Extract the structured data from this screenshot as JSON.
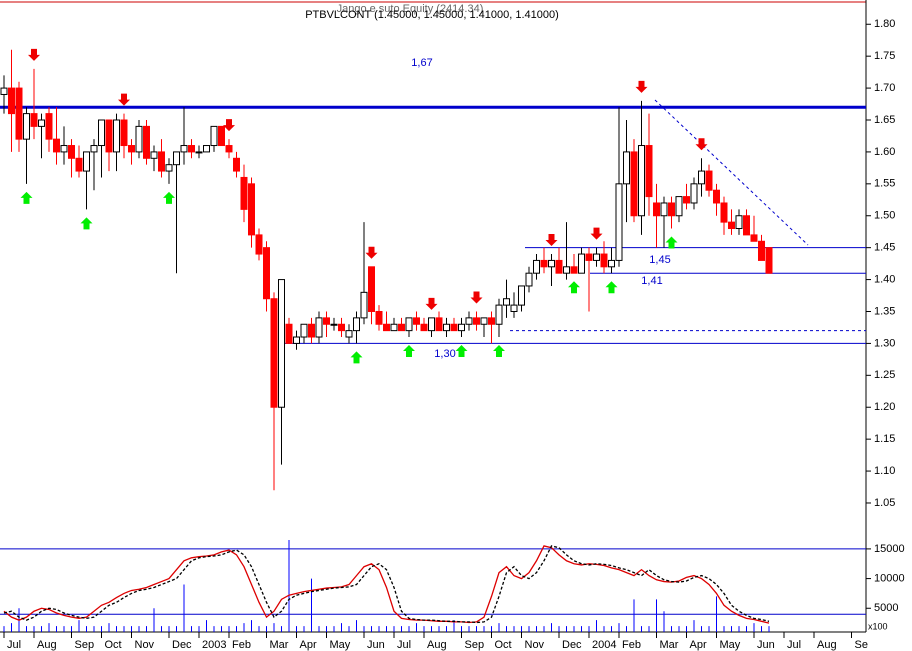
{
  "chart_data": [
    {
      "type": "candlestick",
      "title": "PTBVLCONT (1.45000, 1.45000, 1.41000, 1.41000)",
      "subtitle": "Jango e suto Equity (2414.34)",
      "categories": [
        "Jul",
        null,
        null,
        null,
        "Aug",
        null,
        null,
        null,
        null,
        "Sep",
        null,
        null,
        null,
        "Oct",
        null,
        null,
        null,
        "Nov",
        null,
        null,
        null,
        null,
        "Dec",
        null,
        null,
        null,
        "2003",
        null,
        null,
        null,
        "Feb",
        null,
        null,
        null,
        null,
        "Mar",
        null,
        null,
        null,
        "Apr",
        null,
        null,
        null,
        "May",
        null,
        null,
        null,
        null,
        "Jun",
        null,
        null,
        null,
        "Jul",
        null,
        null,
        null,
        "Aug",
        null,
        null,
        null,
        null,
        "Sep",
        null,
        null,
        null,
        "Oct",
        null,
        null,
        null,
        "Nov",
        null,
        null,
        null,
        null,
        "Dec",
        null,
        null,
        null,
        "2004",
        null,
        null,
        null,
        "Feb",
        null,
        null,
        null,
        null,
        "Mar",
        null,
        null,
        null,
        "Apr",
        null,
        null,
        null,
        "May",
        null,
        null,
        null,
        null,
        "Jun",
        null,
        null,
        null,
        "Jul",
        null,
        null,
        null,
        "Aug",
        null,
        null,
        null,
        null,
        "Se",
        null,
        null
      ],
      "open": [
        1.69,
        1.7,
        1.7,
        1.62,
        1.66,
        1.64,
        1.66,
        1.62,
        1.6,
        1.61,
        1.59,
        1.57,
        1.6,
        1.61,
        1.65,
        1.6,
        1.65,
        1.61,
        1.6,
        1.64,
        1.59,
        1.6,
        1.57,
        1.58,
        1.6,
        1.61,
        1.6,
        1.6,
        1.61,
        1.64,
        1.61,
        1.59,
        1.56,
        1.55,
        1.47,
        1.45,
        1.37,
        1.2,
        1.33,
        1.3,
        1.31,
        1.33,
        1.31,
        1.34,
        1.33,
        1.33,
        1.31,
        1.32,
        1.34,
        1.42,
        1.35,
        1.33,
        1.32,
        1.33,
        1.32,
        1.34,
        1.33,
        1.32,
        1.34,
        1.32,
        1.33,
        1.32,
        1.33,
        1.34,
        1.33,
        1.34,
        1.33,
        1.36,
        1.35,
        1.36,
        1.39,
        1.41,
        1.43,
        1.42,
        1.43,
        1.41,
        1.42,
        1.41,
        1.44,
        1.43,
        1.44,
        1.42,
        1.43,
        1.55,
        1.6,
        1.5,
        1.61,
        1.52,
        1.5,
        1.52,
        1.5,
        1.53,
        1.52,
        1.55,
        1.57,
        1.54,
        1.52,
        1.49,
        1.48,
        1.5,
        1.47,
        1.46,
        1.45,
        null,
        null,
        null,
        null,
        null,
        null,
        null,
        null,
        null,
        null,
        null,
        null,
        null
      ],
      "high": [
        1.72,
        1.76,
        1.71,
        1.67,
        1.73,
        1.66,
        1.67,
        1.67,
        1.64,
        1.62,
        1.61,
        1.6,
        1.62,
        1.65,
        1.65,
        1.66,
        1.66,
        1.62,
        1.65,
        1.65,
        1.61,
        1.62,
        1.59,
        1.6,
        1.67,
        1.62,
        1.61,
        1.61,
        1.64,
        1.64,
        1.62,
        1.6,
        1.58,
        1.56,
        1.48,
        1.46,
        1.38,
        1.4,
        1.34,
        1.32,
        1.33,
        1.34,
        1.35,
        1.35,
        1.34,
        1.34,
        1.33,
        1.35,
        1.49,
        1.42,
        1.36,
        1.35,
        1.34,
        1.34,
        1.34,
        1.35,
        1.34,
        1.34,
        1.35,
        1.34,
        1.34,
        1.34,
        1.35,
        1.35,
        1.34,
        1.35,
        1.37,
        1.4,
        1.38,
        1.39,
        1.42,
        1.44,
        1.45,
        1.44,
        1.45,
        1.49,
        1.44,
        1.45,
        1.45,
        1.45,
        1.46,
        1.45,
        1.67,
        1.65,
        1.62,
        1.68,
        1.66,
        1.55,
        1.53,
        1.53,
        1.53,
        1.55,
        1.56,
        1.59,
        1.58,
        1.55,
        1.53,
        1.51,
        1.51,
        1.51,
        1.5,
        1.47,
        1.45,
        null,
        null,
        null,
        null,
        null,
        null,
        null,
        null,
        null,
        null,
        null,
        null,
        null
      ],
      "low": [
        1.66,
        1.6,
        1.6,
        1.55,
        1.62,
        1.59,
        1.6,
        1.58,
        1.58,
        1.56,
        1.56,
        1.51,
        1.54,
        1.56,
        1.57,
        1.57,
        1.59,
        1.58,
        1.59,
        1.58,
        1.57,
        1.56,
        1.55,
        1.41,
        1.58,
        1.59,
        1.59,
        1.6,
        1.6,
        1.61,
        1.59,
        1.56,
        1.49,
        1.45,
        1.43,
        1.35,
        1.07,
        1.11,
        1.3,
        1.29,
        1.3,
        1.3,
        1.3,
        1.31,
        1.32,
        1.31,
        1.3,
        1.3,
        1.33,
        1.33,
        1.32,
        1.32,
        1.32,
        1.32,
        1.31,
        1.32,
        1.32,
        1.31,
        1.32,
        1.31,
        1.32,
        1.31,
        1.32,
        1.32,
        1.31,
        1.3,
        1.31,
        1.34,
        1.34,
        1.35,
        1.38,
        1.4,
        1.41,
        1.39,
        1.41,
        1.4,
        1.41,
        1.41,
        1.35,
        1.42,
        1.41,
        1.41,
        1.42,
        1.49,
        1.49,
        1.47,
        1.5,
        1.45,
        1.45,
        1.48,
        1.49,
        1.51,
        1.51,
        1.53,
        1.53,
        1.5,
        1.47,
        1.47,
        1.47,
        1.47,
        1.46,
        1.43,
        1.41,
        null,
        null,
        null,
        null,
        null,
        null,
        null,
        null,
        null,
        null,
        null,
        null,
        null
      ],
      "close": [
        1.7,
        1.66,
        1.62,
        1.66,
        1.64,
        1.65,
        1.62,
        1.6,
        1.61,
        1.59,
        1.57,
        1.6,
        1.61,
        1.65,
        1.6,
        1.65,
        1.61,
        1.6,
        1.64,
        1.59,
        1.6,
        1.57,
        1.58,
        1.6,
        1.61,
        1.6,
        1.6,
        1.61,
        1.64,
        1.61,
        1.6,
        1.57,
        1.51,
        1.47,
        1.44,
        1.37,
        1.2,
        1.4,
        1.3,
        1.31,
        1.33,
        1.31,
        1.34,
        1.33,
        1.33,
        1.32,
        1.32,
        1.34,
        1.38,
        1.35,
        1.33,
        1.32,
        1.33,
        1.32,
        1.34,
        1.33,
        1.32,
        1.34,
        1.32,
        1.33,
        1.32,
        1.33,
        1.34,
        1.33,
        1.34,
        1.33,
        1.36,
        1.37,
        1.36,
        1.39,
        1.41,
        1.43,
        1.42,
        1.43,
        1.41,
        1.42,
        1.41,
        1.44,
        1.43,
        1.44,
        1.42,
        1.43,
        1.55,
        1.6,
        1.5,
        1.61,
        1.53,
        1.5,
        1.52,
        1.5,
        1.53,
        1.52,
        1.55,
        1.57,
        1.54,
        1.52,
        1.49,
        1.48,
        1.5,
        1.47,
        1.46,
        1.43,
        1.41,
        null,
        null,
        null,
        null,
        null,
        null,
        null,
        null,
        null,
        null,
        null,
        null,
        null
      ],
      "up_color": "#ffffff",
      "down_color": "#ff0000",
      "ylim": [
        0.992,
        1.838
      ],
      "yticks": [
        1.05,
        {
          "value": 1.1,
          "label": "1.10"
        },
        1.15,
        {
          "value": 1.2,
          "label": "1.20"
        },
        1.25,
        {
          "value": 1.3,
          "label": "1.30"
        },
        1.35,
        {
          "value": 1.4,
          "label": "1.40"
        },
        1.45,
        {
          "value": 1.5,
          "label": "1.50"
        },
        1.55,
        {
          "value": 1.6,
          "label": "1.60"
        },
        1.65,
        {
          "value": 1.7,
          "label": "1.70"
        },
        1.75,
        {
          "value": 1.8,
          "label": "1.80"
        }
      ],
      "reference_lines": [
        {
          "value": 1.67,
          "label": "1,67"
        },
        {
          "value": 1.45,
          "label": "1,45"
        },
        {
          "value": 1.41,
          "label": "1,41"
        },
        {
          "value": 1.3,
          "label": "1,30"
        },
        {
          "value": 1.32,
          "dashed": true
        }
      ],
      "reference_color": "#0000cc",
      "buy_signals": [
        3,
        11,
        22,
        47,
        54,
        61,
        66,
        76,
        81,
        89
      ],
      "sell_signals": [
        4,
        16,
        30,
        49,
        57,
        63,
        73,
        79,
        85,
        93
      ],
      "buy_color": "#00ee00",
      "sell_color": "#ee0000"
    },
    {
      "type": "combo",
      "series": [
        {
          "kind": "bar",
          "color": "#0000ff",
          "values": [
            2000,
            2500,
            5000,
            2000,
            2000,
            2000,
            2500,
            2000,
            2000,
            2000,
            3000,
            2000,
            2000,
            2000,
            2500,
            2000,
            2000,
            2000,
            2000,
            2000,
            5000,
            2000,
            2000,
            2000,
            9000,
            2000,
            2000,
            3000,
            2000,
            2000,
            2000,
            2000,
            2500,
            3000,
            2000,
            2000,
            2500,
            2000,
            16500,
            2000,
            2000,
            10000,
            2000,
            2000,
            2000,
            2500,
            2000,
            3000,
            2000,
            2000,
            2000,
            2000,
            2000,
            2000,
            2000,
            2500,
            2000,
            2000,
            2000,
            2000,
            3000,
            2000,
            2000,
            2000,
            2000,
            2000,
            2500,
            2000,
            2000,
            2000,
            2000,
            2000,
            2000,
            2500,
            2000,
            2000,
            2000,
            2000,
            2000,
            3000,
            2000,
            2000,
            2500,
            2000,
            6500,
            2000,
            2000,
            6500,
            4500,
            2000,
            2000,
            2000,
            3000,
            2000,
            2000,
            7000,
            2000,
            2000,
            2000,
            2000,
            2500,
            2000,
            2000,
            null,
            null,
            null,
            null,
            null,
            null,
            null,
            null,
            null,
            null,
            null,
            null,
            null
          ]
        },
        {
          "kind": "line",
          "color": "#dd0000",
          "values": [
            4500,
            3500,
            3000,
            3500,
            4500,
            5000,
            4800,
            4200,
            3800,
            3500,
            3300,
            3500,
            4500,
            5500,
            6000,
            6800,
            7500,
            8000,
            8200,
            8500,
            9000,
            9500,
            10000,
            11500,
            13000,
            13500,
            13700,
            13800,
            14000,
            14500,
            14800,
            14000,
            12000,
            9000,
            6000,
            3500,
            4500,
            6500,
            7200,
            7500,
            7800,
            8000,
            8200,
            8400,
            8500,
            8600,
            9000,
            10500,
            12000,
            12500,
            11500,
            8500,
            4500,
            3300,
            3100,
            3000,
            3000,
            2900,
            2800,
            2800,
            2700,
            2700,
            2600,
            2700,
            3500,
            7000,
            11000,
            12000,
            10500,
            10000,
            11000,
            13000,
            15500,
            15200,
            14000,
            13000,
            12500,
            12300,
            12500,
            12400,
            12200,
            11800,
            11500,
            11000,
            10500,
            11500,
            10500,
            9800,
            9500,
            9400,
            9600,
            10200,
            10500,
            10000,
            9000,
            7500,
            5500,
            4500,
            3800,
            3300,
            3100,
            2800,
            2500,
            null,
            null,
            null,
            null,
            null,
            null,
            null,
            null,
            null,
            null,
            null,
            null,
            null
          ]
        },
        {
          "kind": "line",
          "color": "#000000",
          "dashed": true,
          "values": [
            4200,
            4500,
            3500,
            3000,
            3500,
            4500,
            5000,
            4800,
            4200,
            3800,
            3500,
            3300,
            3500,
            4500,
            5500,
            6000,
            6800,
            7500,
            8000,
            8200,
            8500,
            9000,
            9500,
            10000,
            11500,
            13000,
            13500,
            13700,
            13800,
            14000,
            14500,
            14800,
            14000,
            12000,
            9000,
            6000,
            3500,
            4500,
            6500,
            7200,
            7500,
            7800,
            8000,
            8200,
            8400,
            8500,
            8600,
            9000,
            10500,
            12000,
            12500,
            11500,
            8500,
            4500,
            3300,
            3100,
            3000,
            3000,
            2900,
            2800,
            2800,
            2700,
            2700,
            2600,
            2700,
            3500,
            7000,
            11000,
            12000,
            10500,
            10000,
            11000,
            13000,
            15500,
            15200,
            14000,
            13000,
            12500,
            12300,
            12500,
            12400,
            12200,
            11800,
            11500,
            11000,
            10500,
            11500,
            10500,
            9800,
            9500,
            9400,
            9600,
            10200,
            10500,
            10000,
            9000,
            7500,
            5500,
            4500,
            3800,
            3300,
            3100,
            2800,
            null,
            null,
            null,
            null,
            null,
            null,
            null,
            null,
            null,
            null,
            null,
            null,
            null
          ]
        }
      ],
      "ylim": [
        1000,
        16500
      ],
      "yticks": [
        5000,
        10000,
        15000
      ],
      "hlines": [
        15000,
        4000
      ],
      "unit_label": "x100"
    }
  ]
}
